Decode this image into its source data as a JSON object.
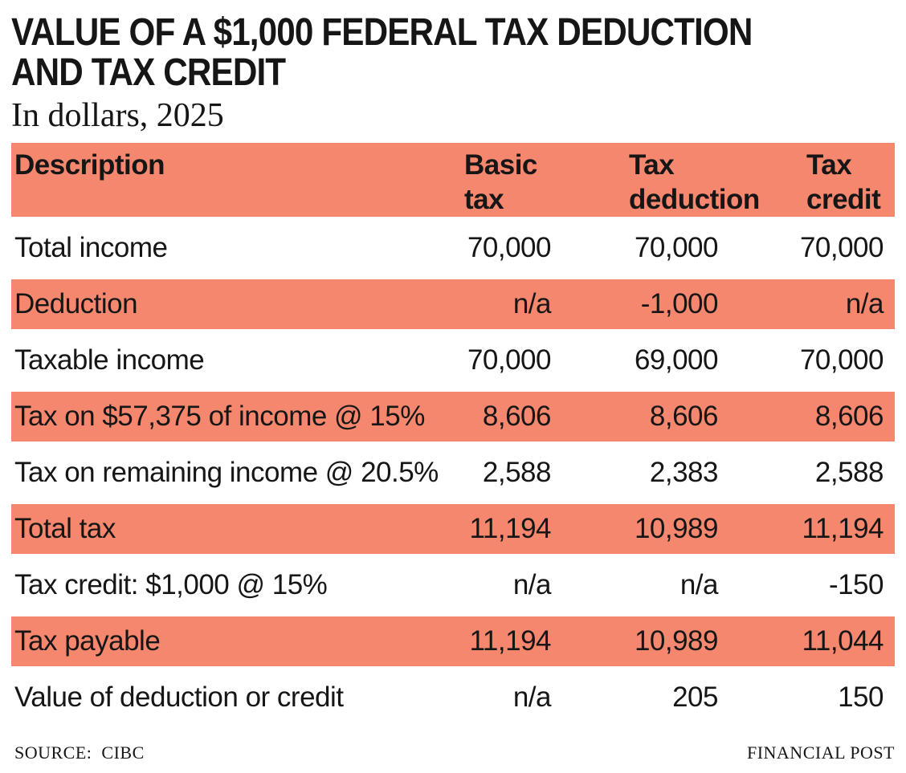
{
  "colors": {
    "accent": "#F5876E",
    "text": "#161616",
    "background": "#FFFFFF"
  },
  "title": {
    "line1": "VALUE OF A $1,000 FEDERAL TAX DEDUCTION",
    "line2": "AND TAX CREDIT",
    "subtitle": "In dollars, 2025"
  },
  "table": {
    "headers": {
      "description": "Description",
      "basic": "Basic tax",
      "deduction": "Tax deduction",
      "credit": "Tax credit"
    },
    "rows": [
      {
        "label": "Total income",
        "basic": "70,000",
        "deduction": "70,000",
        "credit": "70,000"
      },
      {
        "label": "Deduction",
        "basic": "n/a",
        "deduction": "-1,000",
        "credit": "n/a"
      },
      {
        "label": "Taxable income",
        "basic": "70,000",
        "deduction": "69,000",
        "credit": "70,000"
      },
      {
        "label": "Tax on $57,375 of income @ 15%",
        "basic": "8,606",
        "deduction": "8,606",
        "credit": "8,606"
      },
      {
        "label": "Tax on remaining income @ 20.5%",
        "basic": "2,588",
        "deduction": "2,383",
        "credit": "2,588"
      },
      {
        "label": "Total tax",
        "basic": "11,194",
        "deduction": "10,989",
        "credit": "11,194"
      },
      {
        "label": "Tax credit: $1,000 @ 15%",
        "basic": "n/a",
        "deduction": "n/a",
        "credit": "-150"
      },
      {
        "label": "Tax payable",
        "basic": "11,194",
        "deduction": "10,989",
        "credit": "11,044"
      },
      {
        "label": "Value of deduction or credit",
        "basic": "n/a",
        "deduction": "205",
        "credit": "150"
      }
    ]
  },
  "footer": {
    "source_label": "SOURCE:",
    "source_value": "CIBC",
    "credit": "FINANCIAL POST"
  },
  "chart_data": {
    "type": "table",
    "title": "VALUE OF A $1,000 FEDERAL TAX DEDUCTION AND TAX CREDIT",
    "subtitle": "In dollars, 2025",
    "columns": [
      "Description",
      "Basic tax",
      "Tax deduction",
      "Tax credit"
    ],
    "rows": [
      [
        "Total income",
        70000,
        70000,
        70000
      ],
      [
        "Deduction",
        "n/a",
        -1000,
        "n/a"
      ],
      [
        "Taxable income",
        70000,
        69000,
        70000
      ],
      [
        "Tax on $57,375 of income @ 15%",
        8606,
        8606,
        8606
      ],
      [
        "Tax on remaining income @ 20.5%",
        2588,
        2383,
        2588
      ],
      [
        "Total tax",
        11194,
        10989,
        11194
      ],
      [
        "Tax credit: $1,000 @ 15%",
        "n/a",
        "n/a",
        -150
      ],
      [
        "Tax payable",
        11194,
        10989,
        11044
      ],
      [
        "Value of deduction or credit",
        "n/a",
        205,
        150
      ]
    ],
    "shaded_row_indices": [
      1,
      3,
      5,
      7
    ],
    "source": "CIBC",
    "credit": "FINANCIAL POST"
  }
}
